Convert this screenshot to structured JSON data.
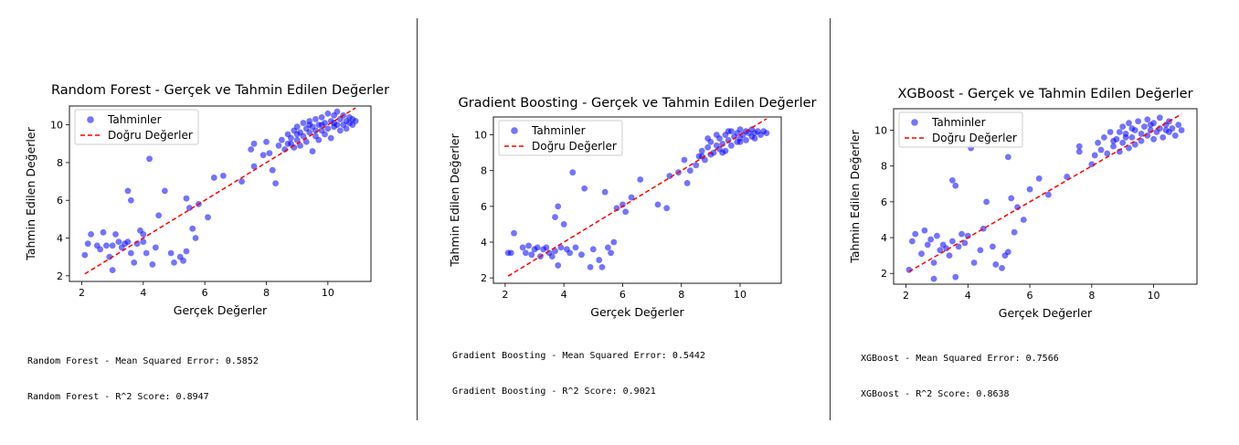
{
  "chart_data": [
    {
      "type": "scatter",
      "title": "Random Forest - Gerçek ve Tahmin Edilen Değerler",
      "xlabel": "Gerçek Değerler",
      "ylabel": "Tahmin Edilen Değerler",
      "xlim": [
        1.6,
        11.4
      ],
      "ylim": [
        1.7,
        11.0
      ],
      "xticks": [
        2,
        4,
        6,
        8,
        10
      ],
      "yticks": [
        2,
        4,
        6,
        8,
        10
      ],
      "legend": {
        "position": "top-left",
        "points_label": "Tahminler",
        "line_label": "Doğru Değerler"
      },
      "points_color": "#0000ff",
      "line_color": "#ff0000",
      "reference_line": [
        [
          2.1,
          2.1
        ],
        [
          10.9,
          10.9
        ]
      ],
      "points": [
        [
          2.1,
          3.1
        ],
        [
          2.2,
          3.7
        ],
        [
          2.3,
          4.2
        ],
        [
          2.5,
          3.6
        ],
        [
          2.6,
          3.4
        ],
        [
          2.7,
          4.3
        ],
        [
          2.8,
          3.6
        ],
        [
          2.9,
          3.0
        ],
        [
          3.0,
          2.3
        ],
        [
          3.0,
          3.6
        ],
        [
          3.1,
          4.2
        ],
        [
          3.2,
          3.8
        ],
        [
          3.3,
          3.5
        ],
        [
          3.4,
          3.7
        ],
        [
          3.5,
          3.8
        ],
        [
          3.5,
          6.5
        ],
        [
          3.6,
          6.0
        ],
        [
          3.6,
          3.2
        ],
        [
          3.7,
          2.7
        ],
        [
          3.8,
          3.7
        ],
        [
          3.9,
          4.4
        ],
        [
          4.0,
          3.8
        ],
        [
          4.0,
          4.2
        ],
        [
          4.1,
          3.2
        ],
        [
          4.2,
          8.2
        ],
        [
          4.3,
          2.6
        ],
        [
          4.4,
          3.5
        ],
        [
          4.5,
          5.2
        ],
        [
          4.7,
          6.5
        ],
        [
          4.9,
          3.2
        ],
        [
          5.0,
          2.7
        ],
        [
          5.2,
          3.0
        ],
        [
          5.3,
          2.8
        ],
        [
          5.4,
          3.3
        ],
        [
          5.4,
          6.1
        ],
        [
          5.5,
          5.6
        ],
        [
          5.6,
          4.5
        ],
        [
          5.7,
          4.0
        ],
        [
          5.8,
          5.8
        ],
        [
          6.1,
          5.1
        ],
        [
          6.3,
          7.2
        ],
        [
          6.6,
          7.3
        ],
        [
          7.2,
          7.0
        ],
        [
          7.5,
          8.7
        ],
        [
          7.6,
          7.8
        ],
        [
          7.6,
          9.0
        ],
        [
          7.9,
          8.4
        ],
        [
          8.0,
          9.1
        ],
        [
          8.1,
          8.5
        ],
        [
          8.2,
          7.6
        ],
        [
          8.3,
          6.9
        ],
        [
          8.4,
          8.9
        ],
        [
          8.5,
          9.2
        ],
        [
          8.6,
          8.7
        ],
        [
          8.7,
          9.5
        ],
        [
          8.7,
          9.0
        ],
        [
          8.8,
          9.3
        ],
        [
          8.9,
          9.7
        ],
        [
          8.9,
          8.8
        ],
        [
          9.0,
          9.2
        ],
        [
          9.0,
          9.9
        ],
        [
          9.1,
          9.6
        ],
        [
          9.1,
          8.9
        ],
        [
          9.2,
          10.1
        ],
        [
          9.2,
          9.4
        ],
        [
          9.3,
          9.8
        ],
        [
          9.3,
          9.1
        ],
        [
          9.4,
          10.2
        ],
        [
          9.4,
          9.6
        ],
        [
          9.5,
          8.6
        ],
        [
          9.5,
          9.9
        ],
        [
          9.6,
          10.3
        ],
        [
          9.6,
          9.4
        ],
        [
          9.7,
          10.0
        ],
        [
          9.7,
          9.2
        ],
        [
          9.8,
          10.4
        ],
        [
          9.8,
          9.7
        ],
        [
          9.9,
          10.1
        ],
        [
          9.9,
          9.5
        ],
        [
          10.0,
          10.6
        ],
        [
          10.0,
          9.8
        ],
        [
          10.1,
          10.2
        ],
        [
          10.1,
          9.3
        ],
        [
          10.2,
          10.5
        ],
        [
          10.2,
          9.9
        ],
        [
          10.3,
          10.7
        ],
        [
          10.3,
          10.0
        ],
        [
          10.4,
          10.3
        ],
        [
          10.4,
          9.7
        ],
        [
          10.5,
          10.5
        ],
        [
          10.5,
          10.0
        ],
        [
          10.6,
          10.2
        ],
        [
          10.6,
          9.8
        ],
        [
          10.7,
          10.4
        ],
        [
          10.7,
          10.1
        ],
        [
          10.8,
          10.3
        ],
        [
          10.8,
          10.0
        ],
        [
          10.9,
          10.2
        ],
        [
          9.0,
          9.5
        ],
        [
          9.4,
          10.0
        ],
        [
          9.8,
          10.0
        ],
        [
          10.2,
          10.1
        ],
        [
          8.8,
          9.0
        ],
        [
          9.6,
          9.7
        ]
      ]
    },
    {
      "type": "scatter",
      "title": "Gradient Boosting - Gerçek ve Tahmin Edilen Değerler",
      "xlabel": "Gerçek Değerler",
      "ylabel": "Tahmin Edilen Değerler",
      "xlim": [
        1.6,
        11.4
      ],
      "ylim": [
        1.7,
        11.0
      ],
      "xticks": [
        2,
        4,
        6,
        8,
        10
      ],
      "yticks": [
        2,
        4,
        6,
        8,
        10
      ],
      "legend": {
        "position": "top-left",
        "points_label": "Tahminler",
        "line_label": "Doğru Değerler"
      },
      "points_color": "#0000ff",
      "line_color": "#ff0000",
      "reference_line": [
        [
          2.1,
          2.1
        ],
        [
          10.9,
          10.9
        ]
      ],
      "points": [
        [
          2.1,
          3.4
        ],
        [
          2.2,
          3.4
        ],
        [
          2.3,
          4.5
        ],
        [
          2.6,
          3.7
        ],
        [
          2.7,
          3.4
        ],
        [
          2.8,
          3.8
        ],
        [
          2.9,
          3.3
        ],
        [
          3.0,
          3.6
        ],
        [
          3.1,
          3.7
        ],
        [
          3.2,
          3.2
        ],
        [
          3.3,
          3.6
        ],
        [
          3.4,
          3.7
        ],
        [
          3.5,
          3.4
        ],
        [
          3.6,
          3.2
        ],
        [
          3.7,
          3.5
        ],
        [
          3.7,
          5.4
        ],
        [
          3.8,
          6.0
        ],
        [
          3.8,
          2.7
        ],
        [
          3.9,
          3.7
        ],
        [
          4.0,
          5.0
        ],
        [
          4.1,
          3.6
        ],
        [
          4.2,
          3.4
        ],
        [
          4.3,
          7.9
        ],
        [
          4.4,
          3.7
        ],
        [
          4.6,
          3.3
        ],
        [
          4.7,
          7.0
        ],
        [
          4.9,
          2.6
        ],
        [
          5.0,
          3.6
        ],
        [
          5.2,
          3.0
        ],
        [
          5.3,
          2.6
        ],
        [
          5.4,
          6.8
        ],
        [
          5.5,
          3.7
        ],
        [
          5.6,
          3.4
        ],
        [
          5.7,
          4.0
        ],
        [
          5.8,
          5.9
        ],
        [
          6.0,
          6.1
        ],
        [
          6.1,
          5.7
        ],
        [
          6.3,
          6.5
        ],
        [
          6.6,
          7.5
        ],
        [
          7.2,
          6.1
        ],
        [
          7.5,
          5.9
        ],
        [
          7.6,
          7.7
        ],
        [
          7.9,
          7.9
        ],
        [
          8.1,
          8.6
        ],
        [
          8.2,
          7.3
        ],
        [
          8.3,
          8.0
        ],
        [
          8.5,
          8.3
        ],
        [
          8.6,
          8.8
        ],
        [
          8.7,
          9.1
        ],
        [
          8.8,
          8.6
        ],
        [
          8.9,
          9.3
        ],
        [
          9.0,
          8.9
        ],
        [
          9.0,
          9.6
        ],
        [
          9.1,
          9.0
        ],
        [
          9.2,
          9.4
        ],
        [
          9.3,
          9.8
        ],
        [
          9.3,
          9.2
        ],
        [
          9.4,
          9.5
        ],
        [
          9.5,
          10.0
        ],
        [
          9.5,
          9.1
        ],
        [
          9.6,
          9.7
        ],
        [
          9.7,
          10.2
        ],
        [
          9.7,
          9.4
        ],
        [
          9.8,
          9.9
        ],
        [
          9.9,
          10.1
        ],
        [
          9.9,
          9.6
        ],
        [
          10.0,
          10.3
        ],
        [
          10.0,
          9.8
        ],
        [
          10.1,
          10.0
        ],
        [
          10.2,
          10.2
        ],
        [
          10.2,
          9.7
        ],
        [
          10.3,
          10.1
        ],
        [
          10.4,
          9.9
        ],
        [
          10.4,
          10.3
        ],
        [
          10.5,
          10.1
        ],
        [
          10.6,
          10.2
        ],
        [
          10.7,
          10.0
        ],
        [
          10.8,
          10.2
        ],
        [
          10.9,
          10.1
        ],
        [
          8.9,
          9.8
        ],
        [
          9.2,
          10.0
        ],
        [
          9.6,
          10.2
        ],
        [
          10.0,
          9.6
        ],
        [
          9.4,
          9.0
        ],
        [
          8.7,
          8.8
        ],
        [
          10.5,
          9.8
        ]
      ]
    },
    {
      "type": "scatter",
      "title": "XGBoost - Gerçek ve Tahmin Edilen Değerler",
      "xlabel": "Gerçek Değerler",
      "ylabel": "Tahmin Edilen Değerler",
      "xlim": [
        1.6,
        11.4
      ],
      "ylim": [
        1.4,
        11.2
      ],
      "xticks": [
        2,
        4,
        6,
        8,
        10
      ],
      "yticks": [
        2,
        4,
        6,
        8,
        10
      ],
      "legend": {
        "position": "top-left",
        "points_label": "Tahminler",
        "line_label": "Doğru Değerler"
      },
      "points_color": "#0000ff",
      "line_color": "#ff0000",
      "reference_line": [
        [
          2.1,
          2.1
        ],
        [
          10.9,
          10.9
        ]
      ],
      "points": [
        [
          2.1,
          2.2
        ],
        [
          2.2,
          3.8
        ],
        [
          2.3,
          4.2
        ],
        [
          2.5,
          3.1
        ],
        [
          2.6,
          4.4
        ],
        [
          2.7,
          3.6
        ],
        [
          2.8,
          3.9
        ],
        [
          2.9,
          2.6
        ],
        [
          2.9,
          1.7
        ],
        [
          3.0,
          4.1
        ],
        [
          3.1,
          3.3
        ],
        [
          3.2,
          3.6
        ],
        [
          3.3,
          3.4
        ],
        [
          3.4,
          3.0
        ],
        [
          3.5,
          3.8
        ],
        [
          3.5,
          7.2
        ],
        [
          3.6,
          6.9
        ],
        [
          3.6,
          1.8
        ],
        [
          3.7,
          3.5
        ],
        [
          3.8,
          4.2
        ],
        [
          3.9,
          3.7
        ],
        [
          4.0,
          4.1
        ],
        [
          4.1,
          9.0
        ],
        [
          4.2,
          2.6
        ],
        [
          4.4,
          3.3
        ],
        [
          4.5,
          4.5
        ],
        [
          4.6,
          6.0
        ],
        [
          4.8,
          3.5
        ],
        [
          4.9,
          2.5
        ],
        [
          5.1,
          2.3
        ],
        [
          5.2,
          3.0
        ],
        [
          5.3,
          8.5
        ],
        [
          5.3,
          3.2
        ],
        [
          5.4,
          6.2
        ],
        [
          5.5,
          4.3
        ],
        [
          5.6,
          5.7
        ],
        [
          5.8,
          5.0
        ],
        [
          6.0,
          6.7
        ],
        [
          6.3,
          7.3
        ],
        [
          6.6,
          6.4
        ],
        [
          7.2,
          7.4
        ],
        [
          7.6,
          9.1
        ],
        [
          7.6,
          8.8
        ],
        [
          8.0,
          8.1
        ],
        [
          8.1,
          8.6
        ],
        [
          8.2,
          9.3
        ],
        [
          8.3,
          8.9
        ],
        [
          8.4,
          9.6
        ],
        [
          8.5,
          8.7
        ],
        [
          8.6,
          9.9
        ],
        [
          8.7,
          9.1
        ],
        [
          8.8,
          9.5
        ],
        [
          8.9,
          8.8
        ],
        [
          9.0,
          10.2
        ],
        [
          9.0,
          9.3
        ],
        [
          9.1,
          9.8
        ],
        [
          9.2,
          9.0
        ],
        [
          9.2,
          10.4
        ],
        [
          9.3,
          9.6
        ],
        [
          9.4,
          10.0
        ],
        [
          9.4,
          9.2
        ],
        [
          9.5,
          10.5
        ],
        [
          9.6,
          9.8
        ],
        [
          9.6,
          9.4
        ],
        [
          9.7,
          10.2
        ],
        [
          9.8,
          9.7
        ],
        [
          9.8,
          10.6
        ],
        [
          9.9,
          10.0
        ],
        [
          10.0,
          9.5
        ],
        [
          10.0,
          10.4
        ],
        [
          10.1,
          9.9
        ],
        [
          10.2,
          10.7
        ],
        [
          10.2,
          10.1
        ],
        [
          10.3,
          9.6
        ],
        [
          10.4,
          10.3
        ],
        [
          10.5,
          9.9
        ],
        [
          10.5,
          10.5
        ],
        [
          10.6,
          10.1
        ],
        [
          10.7,
          9.7
        ],
        [
          10.8,
          10.3
        ],
        [
          10.9,
          10.0
        ],
        [
          8.7,
          9.4
        ],
        [
          9.3,
          10.1
        ],
        [
          9.9,
          10.3
        ],
        [
          10.4,
          10.0
        ],
        [
          9.1,
          9.6
        ],
        [
          8.9,
          9.9
        ]
      ]
    }
  ],
  "metrics": [
    {
      "mse": "Random Forest - Mean Squared Error: 0.5852",
      "r2": "Random Forest - R^2 Score: 0.8947"
    },
    {
      "mse": "Gradient Boosting - Mean Squared Error: 0.5442",
      "r2": "Gradient Boosting - R^2 Score: 0.9021"
    },
    {
      "mse": "XGBoost - Mean Squared Error: 0.7566",
      "r2": "XGBoost - R^2 Score: 0.8638"
    }
  ]
}
